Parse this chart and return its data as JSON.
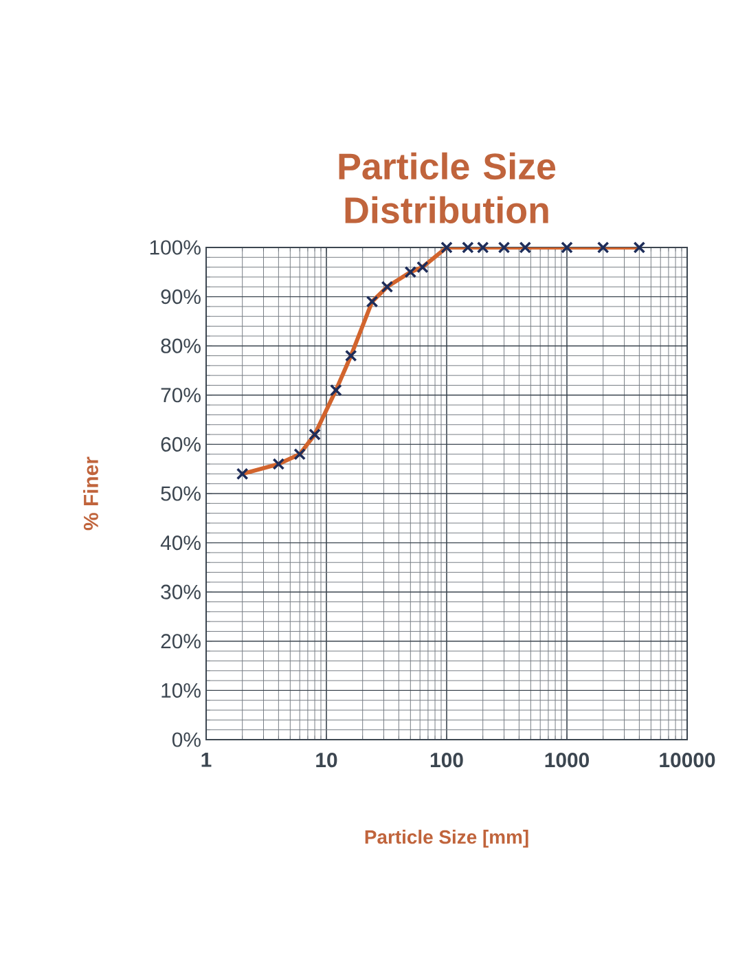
{
  "chart_data": {
    "type": "line",
    "title": "Particle Size Distribution",
    "xlabel": "Particle Size [mm]",
    "ylabel": "% Finer",
    "log": "x",
    "grid": true,
    "marker": "cross",
    "line_style": "solid",
    "xlim": [
      1,
      10000
    ],
    "xticks": [
      1,
      10,
      100,
      1000,
      10000
    ],
    "ylim": [
      0,
      100
    ],
    "yticks": [
      {
        "value": 0,
        "label": "0%"
      },
      {
        "value": 10,
        "label": "10%"
      },
      {
        "value": 20,
        "label": "20%"
      },
      {
        "value": 30,
        "label": "30%"
      },
      {
        "value": 40,
        "label": "40%"
      },
      {
        "value": 50,
        "label": "50%"
      },
      {
        "value": 60,
        "label": "60%"
      },
      {
        "value": 70,
        "label": "70%"
      },
      {
        "value": 80,
        "label": "80%"
      },
      {
        "value": 90,
        "label": "90%"
      },
      {
        "value": 100,
        "label": "100%"
      }
    ],
    "series": [
      {
        "color": "#d2642d",
        "x": [
          2,
          4,
          6,
          8,
          12,
          16,
          24,
          32,
          50,
          63,
          100,
          150,
          200,
          300,
          450,
          1000,
          2000,
          4000
        ],
        "values": [
          54,
          56,
          58,
          62,
          71,
          78,
          89,
          92,
          95,
          96,
          100,
          100,
          100,
          100,
          100,
          100,
          100,
          100
        ]
      }
    ]
  }
}
